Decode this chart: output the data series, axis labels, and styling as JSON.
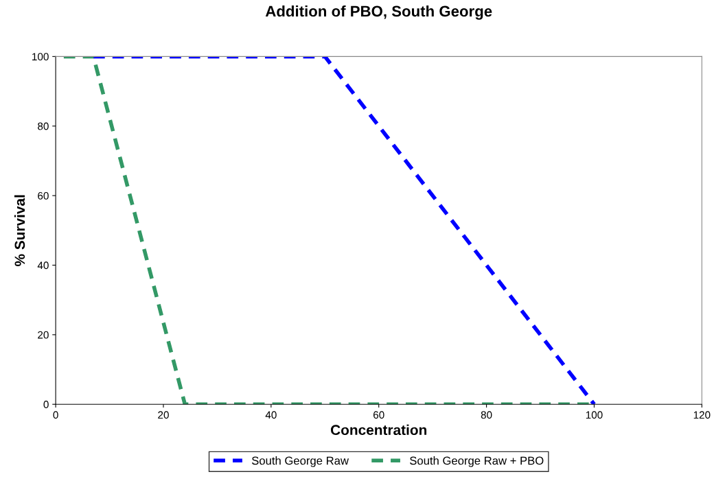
{
  "chart_data": {
    "type": "line",
    "title": "Addition of PBO, South George",
    "xlabel": "Concentration",
    "ylabel": "% Survival",
    "xlim": [
      0,
      120
    ],
    "xticks": [
      0,
      20,
      40,
      60,
      80,
      100,
      120
    ],
    "ylim": [
      0,
      100
    ],
    "yticks": [
      0,
      20,
      40,
      60,
      80,
      100
    ],
    "grid": false,
    "legend": "bottom",
    "line_style": "dashed",
    "marker": "none",
    "series": [
      {
        "name": "South George Raw",
        "color": "#0000ff",
        "x": [
          7,
          50,
          100
        ],
        "values": [
          100,
          100,
          0
        ]
      },
      {
        "name": "South George Raw + PBO",
        "color": "#339966",
        "x": [
          1.5,
          7,
          24,
          100
        ],
        "values": [
          100,
          100,
          0,
          0
        ]
      }
    ]
  }
}
